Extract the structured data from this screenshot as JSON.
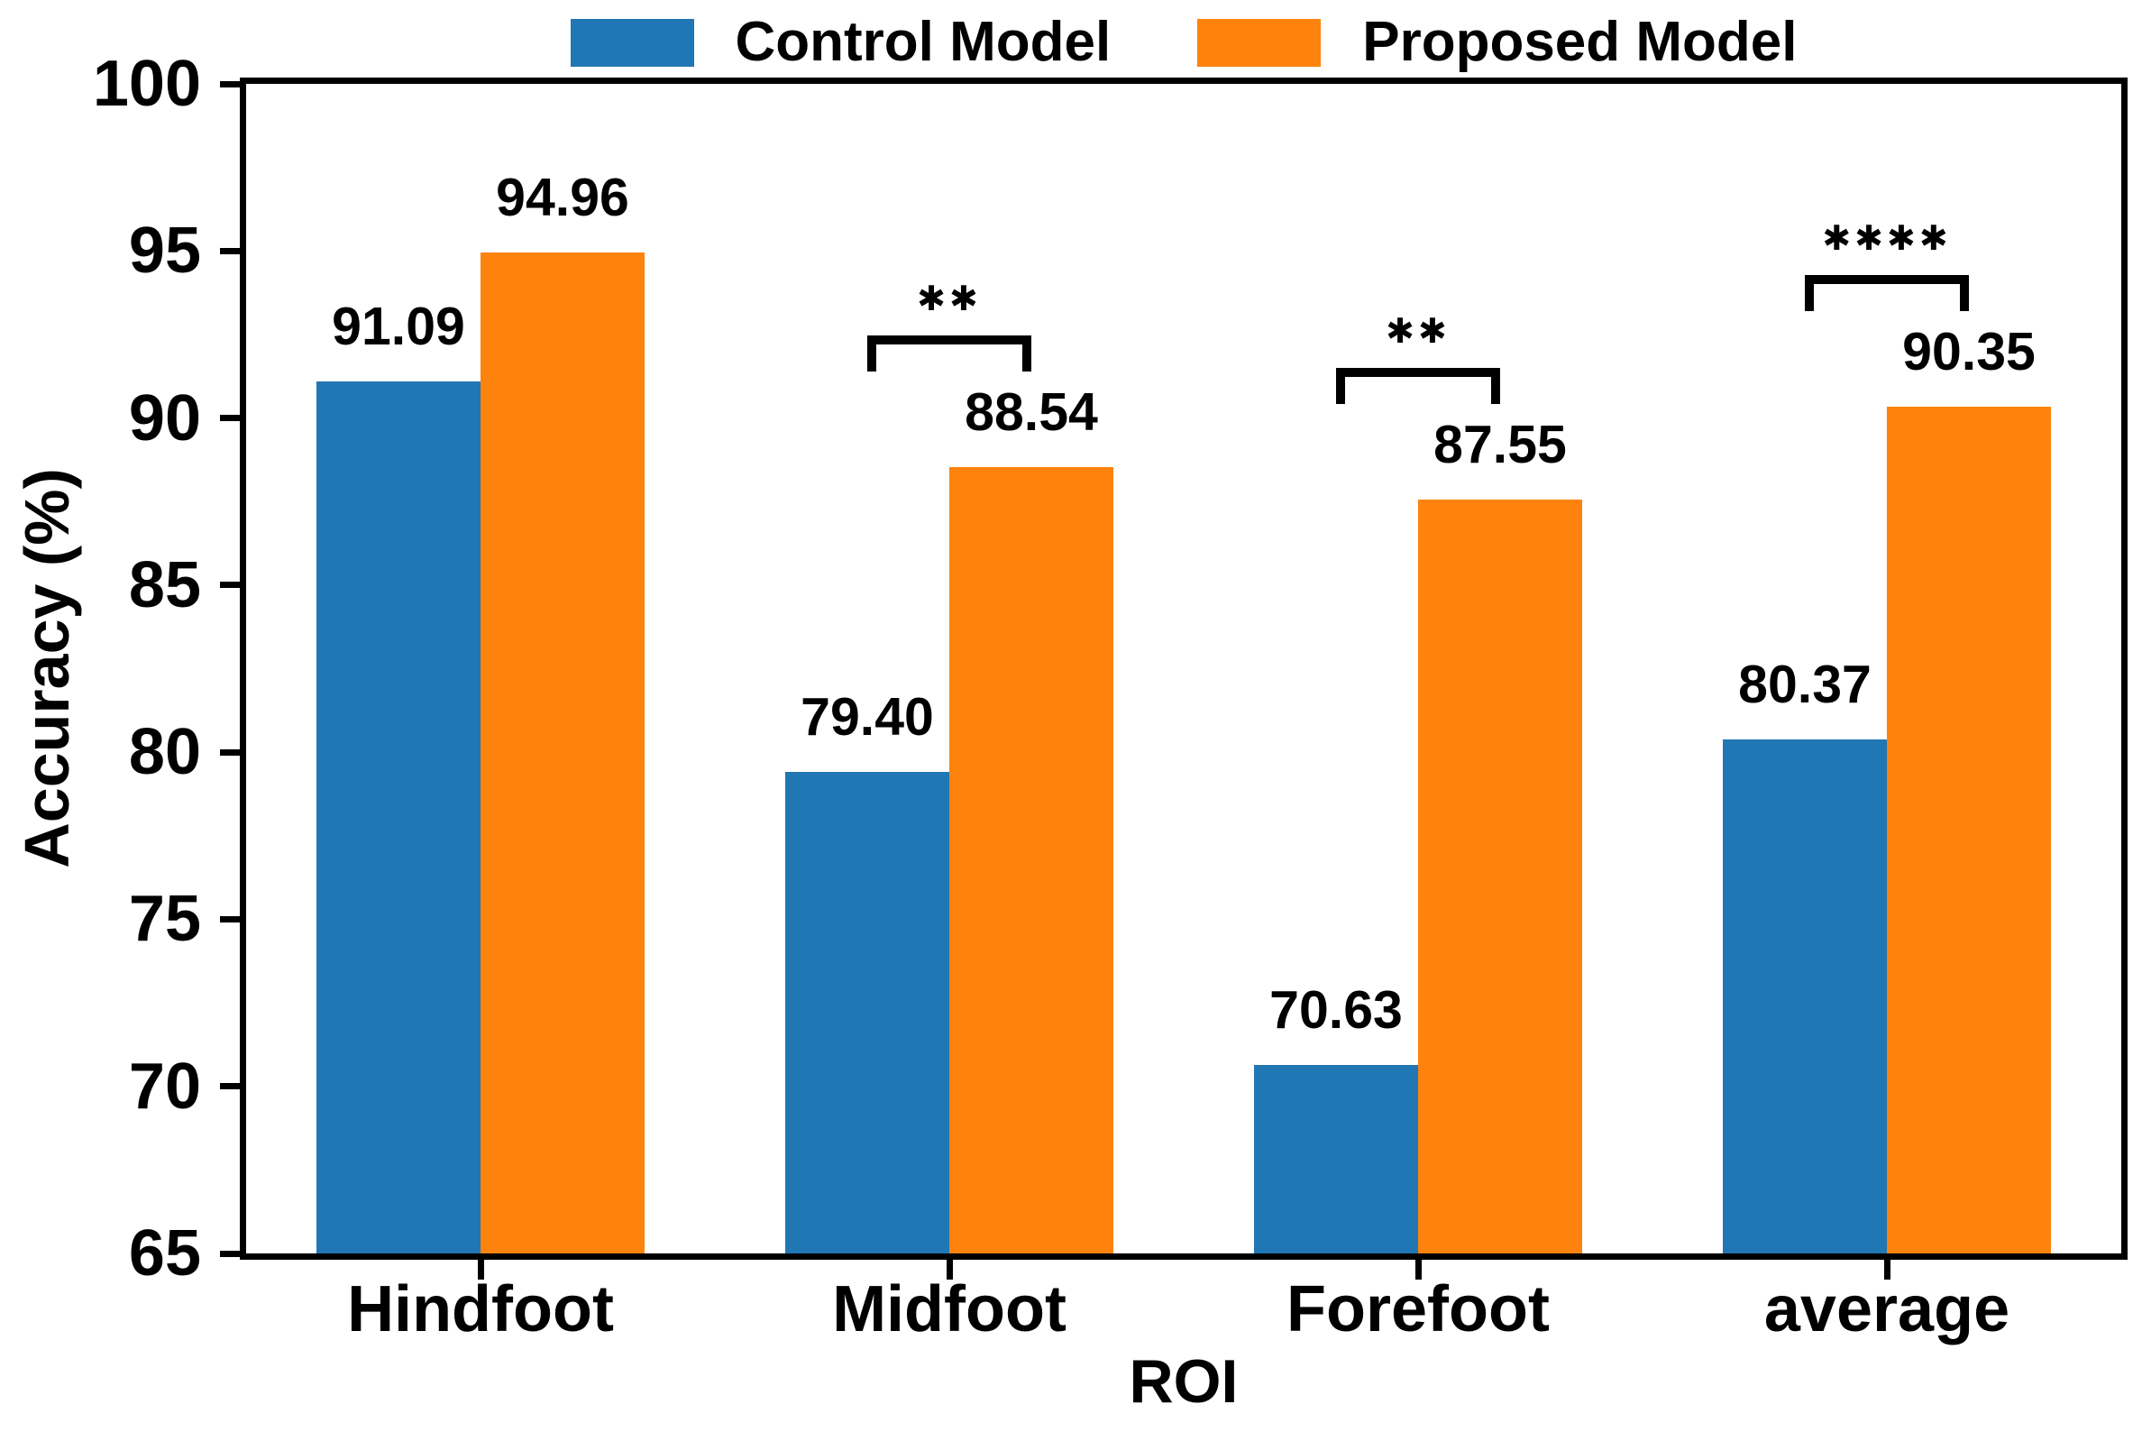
{
  "legend": [
    {
      "label": "Control Model",
      "color": "#2176b4",
      "swatch_icon": "blue-square-swatch"
    },
    {
      "label": "Proposed Model",
      "color": "#fd830e",
      "swatch_icon": "orange-square-swatch"
    }
  ],
  "chart_data": {
    "type": "bar",
    "title": "",
    "categories": [
      "Hindfoot",
      "Midfoot",
      "Forefoot",
      "average"
    ],
    "series": [
      {
        "name": "Control Model",
        "color": "#2176b4",
        "values": [
          91.09,
          79.4,
          70.63,
          80.37
        ]
      },
      {
        "name": "Proposed Model",
        "color": "#fd830e",
        "values": [
          94.96,
          88.54,
          87.55,
          90.35
        ]
      }
    ],
    "value_labels": [
      [
        "91.09",
        "79.40",
        "70.63",
        "80.37"
      ],
      [
        "94.96",
        "88.54",
        "87.55",
        "90.35"
      ]
    ],
    "significance": [
      "",
      "**",
      "**",
      "****"
    ],
    "xlabel": "ROI",
    "ylabel": "Accuracy (%)",
    "ylim": [
      65,
      100
    ],
    "yticks": [
      65,
      70,
      75,
      80,
      85,
      90,
      95,
      100
    ],
    "grid": false,
    "legend_position": "top-center",
    "bar_colors": {
      "control": "#2176b4",
      "proposed": "#fd830e"
    }
  }
}
